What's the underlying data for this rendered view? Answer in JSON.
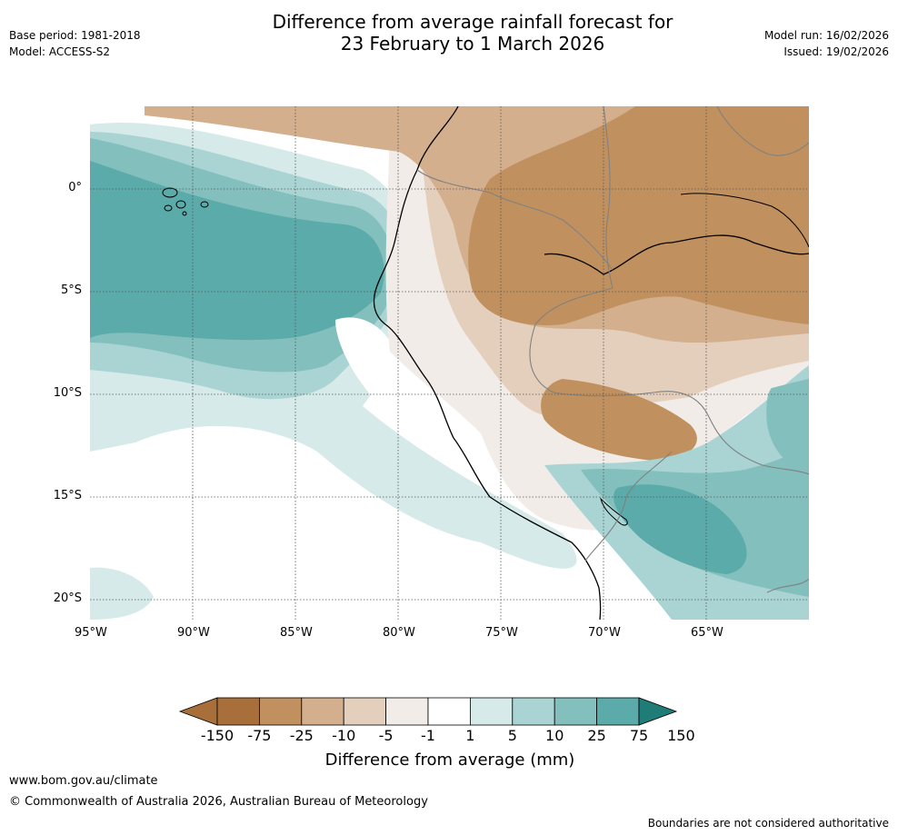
{
  "header": {
    "title_line1": "Difference from average rainfall forecast for",
    "title_line2": "23 February to 1 March 2026",
    "base_period": "Base period: 1981-2018",
    "model": "Model: ACCESS-S2",
    "model_run": "Model run: 16/02/2026",
    "issued": "Issued: 19/02/2026"
  },
  "map": {
    "lat_labels": [
      "0°",
      "5°S",
      "10°S",
      "15°S",
      "20°S"
    ],
    "lon_labels": [
      "95°W",
      "90°W",
      "85°W",
      "80°W",
      "75°W",
      "70°W",
      "65°W"
    ]
  },
  "colorbar": {
    "title": "Difference from average (mm)",
    "ticks": [
      "-150",
      "-75",
      "-25",
      "-10",
      "-5",
      "-1",
      "1",
      "5",
      "10",
      "25",
      "75",
      "150"
    ],
    "colors": [
      "#a86f3a",
      "#c0915f",
      "#d3af8e",
      "#e4cfbc",
      "#f1ece7",
      "#ffffff",
      "#d6eae9",
      "#a9d4d3",
      "#82bfbd",
      "#5aabaa",
      "#2e9993",
      "#1f7c77"
    ]
  },
  "footer": {
    "url": "www.bom.gov.au/climate",
    "copyright": "© Commonwealth of Australia 2026, Australian Bureau of Meteorology",
    "disclaimer": "Boundaries are not considered authoritative"
  }
}
